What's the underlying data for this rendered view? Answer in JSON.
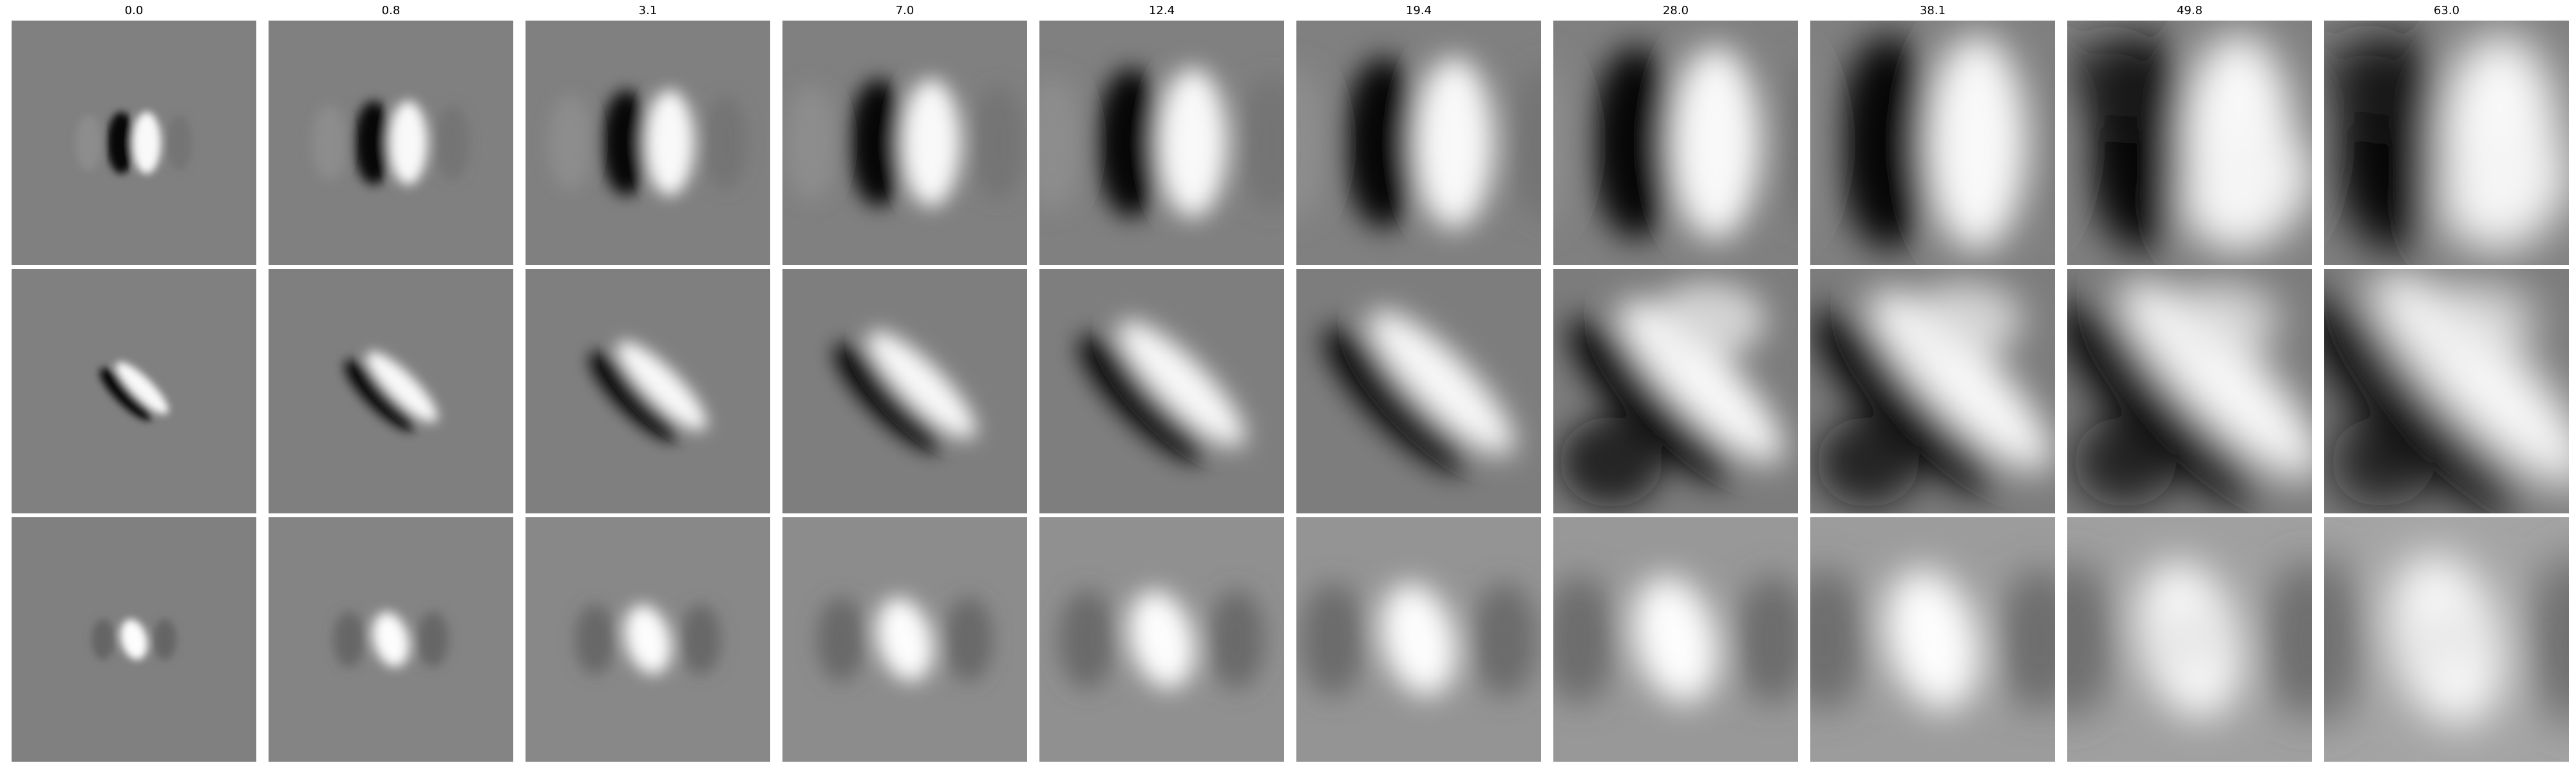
{
  "columns": [
    {
      "label": "0.0"
    },
    {
      "label": "0.8"
    },
    {
      "label": "3.1"
    },
    {
      "label": "7.0"
    },
    {
      "label": "12.4"
    },
    {
      "label": "19.4"
    },
    {
      "label": "28.0"
    },
    {
      "label": "38.1"
    },
    {
      "label": "49.8"
    },
    {
      "label": "63.0"
    }
  ],
  "rows": [
    {
      "pattern": "vertical-dark-left-bright-right"
    },
    {
      "pattern": "diagonal-dark-lower-left-bright-upper-right"
    },
    {
      "pattern": "central-bright-blob-dark-flanks"
    }
  ]
}
